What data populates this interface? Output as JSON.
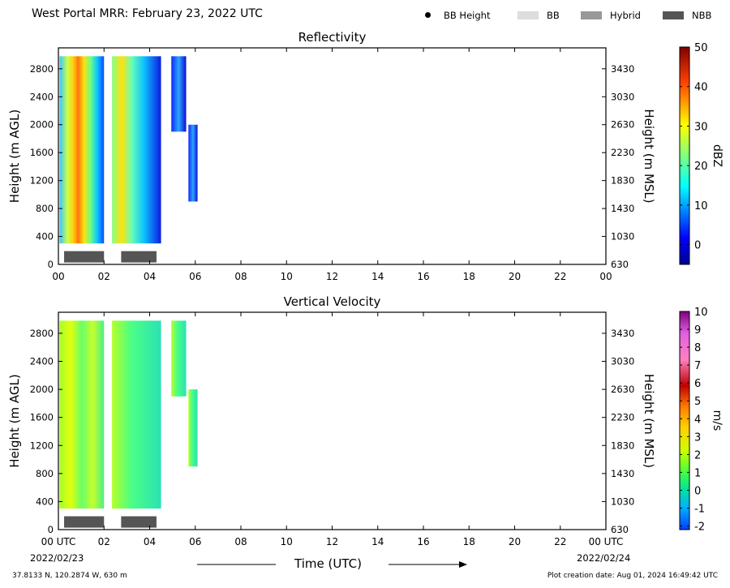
{
  "figure": {
    "suptitle": "West Portal MRR:  February 23, 2022 UTC",
    "legend": [
      {
        "label": "BB Height",
        "symbol": "dot",
        "color": "#000000"
      },
      {
        "label": "BB",
        "symbol": "box",
        "color": "#dddddd"
      },
      {
        "label": "Hybrid",
        "symbol": "box",
        "color": "#999999"
      },
      {
        "label": "NBB",
        "symbol": "box",
        "color": "#555555"
      }
    ],
    "x_title": "Time (UTC)",
    "x_start_date": "2022/02/23",
    "x_end_date": "2022/02/24",
    "footer_location": "37.8133 N, 120.2874 W, 630 m",
    "footer_created": "Plot creation date: Aug 01, 2024 16:49:42 UTC"
  },
  "chart_data": [
    {
      "type": "heatmap",
      "title": "Reflectivity",
      "ylabel": "Height (m AGL)",
      "ylabel_right": "Height (m MSL)",
      "x_ticks": [
        "00",
        "02",
        "04",
        "06",
        "08",
        "10",
        "12",
        "14",
        "16",
        "18",
        "20",
        "22",
        "00"
      ],
      "y_ticks_left": [
        "0",
        "400",
        "800",
        "1200",
        "1600",
        "2000",
        "2400",
        "2800"
      ],
      "y_ticks_right": [
        "630",
        "1030",
        "1430",
        "1830",
        "2230",
        "2630",
        "3030",
        "3430"
      ],
      "ylim": [
        0,
        3100
      ],
      "xlim_hours": [
        0,
        24
      ],
      "colorbar": {
        "label": "dBZ",
        "range": [
          -5,
          50
        ],
        "ticks": [
          "0",
          "10",
          "20",
          "30",
          "40",
          "50"
        ]
      },
      "echo_segments_hours": [
        [
          0.05,
          2.0
        ],
        [
          2.35,
          4.5
        ],
        [
          4.95,
          5.6
        ],
        [
          5.7,
          6.1
        ]
      ],
      "bb_type_bars": [
        {
          "start_hour": 0.25,
          "end_hour": 2.0,
          "type": "NBB"
        },
        {
          "start_hour": 2.75,
          "end_hour": 4.3,
          "type": "NBB"
        }
      ]
    },
    {
      "type": "heatmap",
      "title": "Vertical Velocity",
      "ylabel": "Height (m AGL)",
      "ylabel_right": "Height (m MSL)",
      "x_ticks": [
        "00 UTC",
        "02",
        "04",
        "06",
        "08",
        "10",
        "12",
        "14",
        "16",
        "18",
        "20",
        "22",
        "00 UTC"
      ],
      "y_ticks_left": [
        "0",
        "400",
        "800",
        "1200",
        "1600",
        "2000",
        "2400",
        "2800"
      ],
      "y_ticks_right": [
        "630",
        "1030",
        "1430",
        "1830",
        "2230",
        "2630",
        "3030",
        "3430"
      ],
      "ylim": [
        0,
        3100
      ],
      "xlim_hours": [
        0,
        24
      ],
      "colorbar": {
        "label": "m/s",
        "range": [
          -2.2,
          10
        ],
        "ticks": [
          "-2",
          "-1",
          "0",
          "1",
          "2",
          "3",
          "4",
          "5",
          "6",
          "7",
          "8",
          "9",
          "10"
        ]
      },
      "echo_segments_hours": [
        [
          0.05,
          2.0
        ],
        [
          2.35,
          4.5
        ],
        [
          4.95,
          5.6
        ],
        [
          5.7,
          6.1
        ]
      ],
      "bb_type_bars": [
        {
          "start_hour": 0.25,
          "end_hour": 2.0,
          "type": "NBB"
        },
        {
          "start_hour": 2.75,
          "end_hour": 4.3,
          "type": "NBB"
        }
      ]
    }
  ]
}
